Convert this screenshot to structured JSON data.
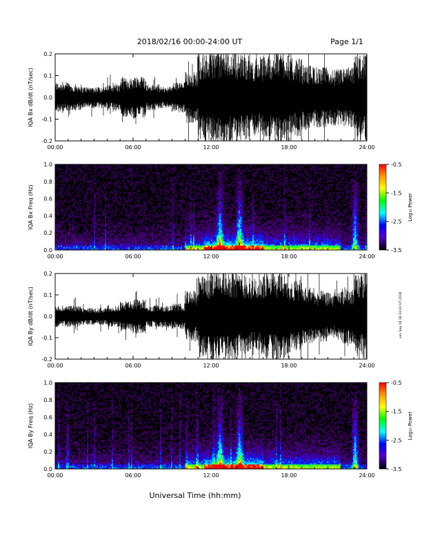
{
  "header": {
    "date_range": "2018/02/16  00:00-24:00 UT",
    "page": "Page 1/1"
  },
  "footer": {
    "xaxis_title": "Universal Time (hh:mm)",
    "side_note": "ven Sep 18 18:33:02 UT 2018"
  },
  "colorbar": {
    "label": "Log₁₀ Power",
    "ticks": [
      "-0.5",
      "-1.5",
      "-2.5",
      "-3.5"
    ],
    "stops": [
      "#ff0000",
      "#ff9900",
      "#ffff00",
      "#00ff00",
      "#00ffff",
      "#0000ff",
      "#5500cc",
      "#000000"
    ]
  },
  "chart_data": [
    {
      "type": "line",
      "ylabel": "IQA Bx dB/dt (nT/sec)",
      "x": [
        "00:00",
        "06:00",
        "12:00",
        "18:00",
        "24:00"
      ],
      "ylim": [
        -0.2,
        0.2
      ],
      "yticks": [
        "0.2",
        "0.1",
        "0.0",
        "-0.1",
        "-0.2"
      ],
      "activity_by_hour": [
        0.07,
        0.06,
        0.05,
        0.05,
        0.06,
        0.09,
        0.1,
        0.06,
        0.05,
        0.07,
        0.12,
        0.2,
        0.22,
        0.22,
        0.2,
        0.18,
        0.2,
        0.22,
        0.18,
        0.15,
        0.14,
        0.13,
        0.14,
        0.2
      ],
      "color": "#000000"
    },
    {
      "type": "heatmap",
      "ylabel": "IQA Bx Freq (Hz)",
      "x": [
        "00:00",
        "06:00",
        "12:00",
        "18:00",
        "24:00"
      ],
      "ylim": [
        0.0,
        1.0
      ],
      "yticks": [
        "1.0",
        "0.8",
        "0.6",
        "0.4",
        "0.2",
        "0.0"
      ],
      "zlim": [
        -3.5,
        -0.5
      ],
      "zlabel": "Log₁₀ Power",
      "bright_bursts_hours": [
        12.7,
        14.2,
        23.1
      ]
    },
    {
      "type": "line",
      "ylabel": "IQA By dB/dt (nT/sec)",
      "x": [
        "00:00",
        "06:00",
        "12:00",
        "18:00",
        "24:00"
      ],
      "ylim": [
        -0.2,
        0.2
      ],
      "yticks": [
        "0.2",
        "0.1",
        "0.0",
        "-0.1",
        "-0.2"
      ],
      "activity_by_hour": [
        0.05,
        0.05,
        0.04,
        0.04,
        0.05,
        0.07,
        0.08,
        0.05,
        0.05,
        0.06,
        0.12,
        0.2,
        0.22,
        0.22,
        0.2,
        0.18,
        0.2,
        0.21,
        0.17,
        0.14,
        0.12,
        0.11,
        0.13,
        0.2
      ],
      "color": "#000000"
    },
    {
      "type": "heatmap",
      "ylabel": "IQA By Freq (Hz)",
      "x": [
        "00:00",
        "06:00",
        "12:00",
        "18:00",
        "24:00"
      ],
      "ylim": [
        0.0,
        1.0
      ],
      "yticks": [
        "1.0",
        "0.8",
        "0.6",
        "0.4",
        "0.2",
        "0.0"
      ],
      "zlim": [
        -3.5,
        -0.5
      ],
      "zlabel": "Log₁₀ Power",
      "bright_bursts_hours": [
        12.7,
        14.2,
        23.1
      ]
    }
  ]
}
